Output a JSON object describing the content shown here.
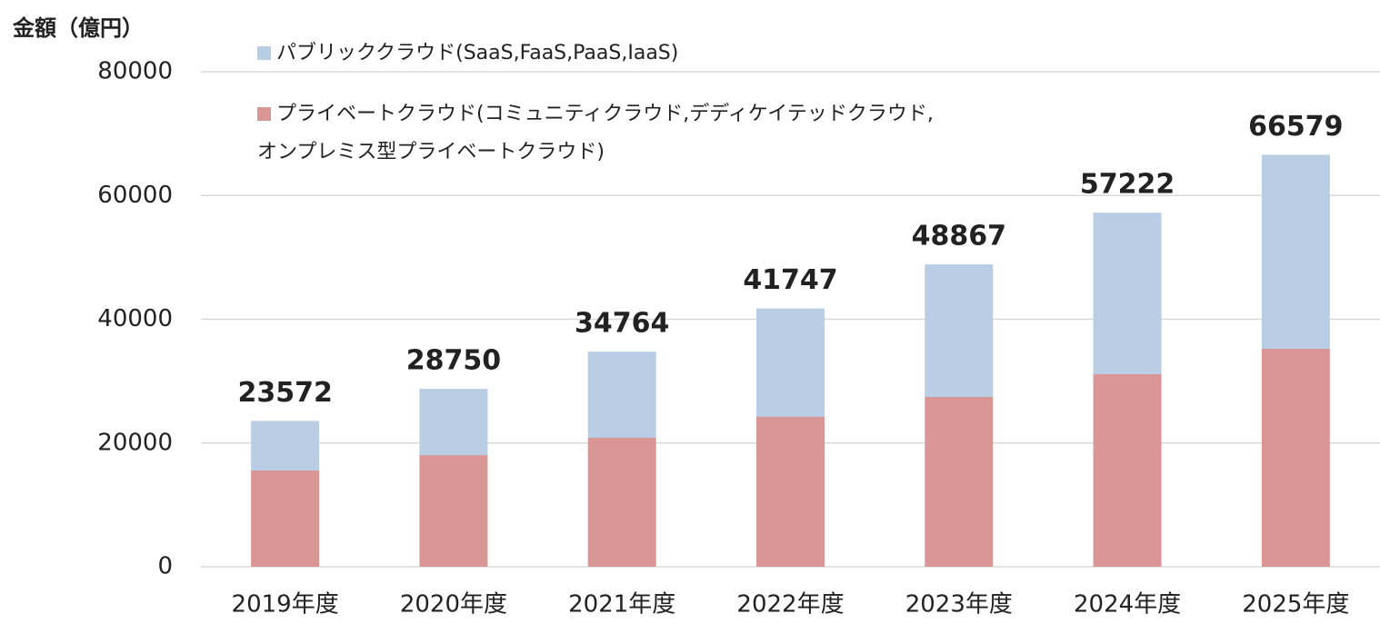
{
  "chart_data": {
    "type": "stacked_bar",
    "y_axis_label": "金額（億円）",
    "categories": [
      "2019年度",
      "2020年度",
      "2021年度",
      "2022年度",
      "2023年度",
      "2024年度",
      "2025年度"
    ],
    "series": [
      {
        "name": "プライベートクラウド(コミュニティクラウド,デディケイテッドクラウド,\nオンプレミス型プライベートクラウド)",
        "color": "#d99694",
        "values": [
          15560,
          18050,
          20840,
          24220,
          27450,
          31120,
          35230
        ]
      },
      {
        "name": "パブリッククラウド(SaaS,FaaS,PaaS,IaaS)",
        "color": "#b9cde5",
        "values": [
          8012,
          10700,
          13924,
          17527,
          21417,
          26102,
          31349
        ]
      }
    ],
    "totals": [
      23572,
      28750,
      34764,
      41747,
      48867,
      57222,
      66579
    ],
    "ylim": [
      0,
      80000
    ],
    "yticks": [
      0,
      20000,
      40000,
      60000,
      80000
    ],
    "grid": true
  }
}
